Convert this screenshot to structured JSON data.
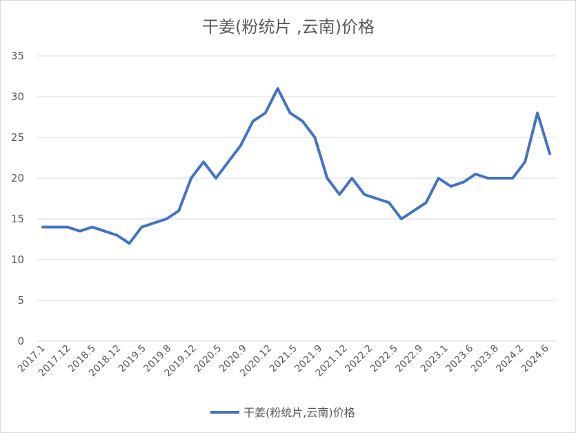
{
  "chart_data": {
    "type": "line",
    "title": "干姜(粉统片 ,云南)价格",
    "xlabel": "",
    "ylabel": "",
    "ylim": [
      0,
      35
    ],
    "yticks": [
      0,
      5,
      10,
      15,
      20,
      25,
      30,
      35
    ],
    "grid": true,
    "legend_position": "bottom",
    "line_color": "#4472c4",
    "x_tick_labels": [
      "2017.1",
      "2017.12",
      "2018.5",
      "2018.12",
      "2019.5",
      "2019.8",
      "2019.12",
      "2020.5",
      "2020.9",
      "2020.12",
      "2021.5",
      "2021.9",
      "2021.12",
      "2022.2",
      "2022.5",
      "2022.9",
      "2023.1",
      "2023.6",
      "2023.8",
      "2024.2",
      "2024.6"
    ],
    "series": [
      {
        "name": "干姜(粉统片,云南)价格",
        "values": [
          14,
          14,
          14,
          13.5,
          14,
          13.5,
          13,
          12,
          14,
          14.5,
          15,
          16,
          20,
          22,
          20,
          22,
          24,
          27,
          28,
          31,
          28,
          27,
          25,
          20,
          18,
          20,
          18,
          17.5,
          17,
          15,
          16,
          17,
          20,
          19,
          19.5,
          20.5,
          20,
          20,
          20,
          22,
          28,
          23
        ]
      }
    ]
  }
}
